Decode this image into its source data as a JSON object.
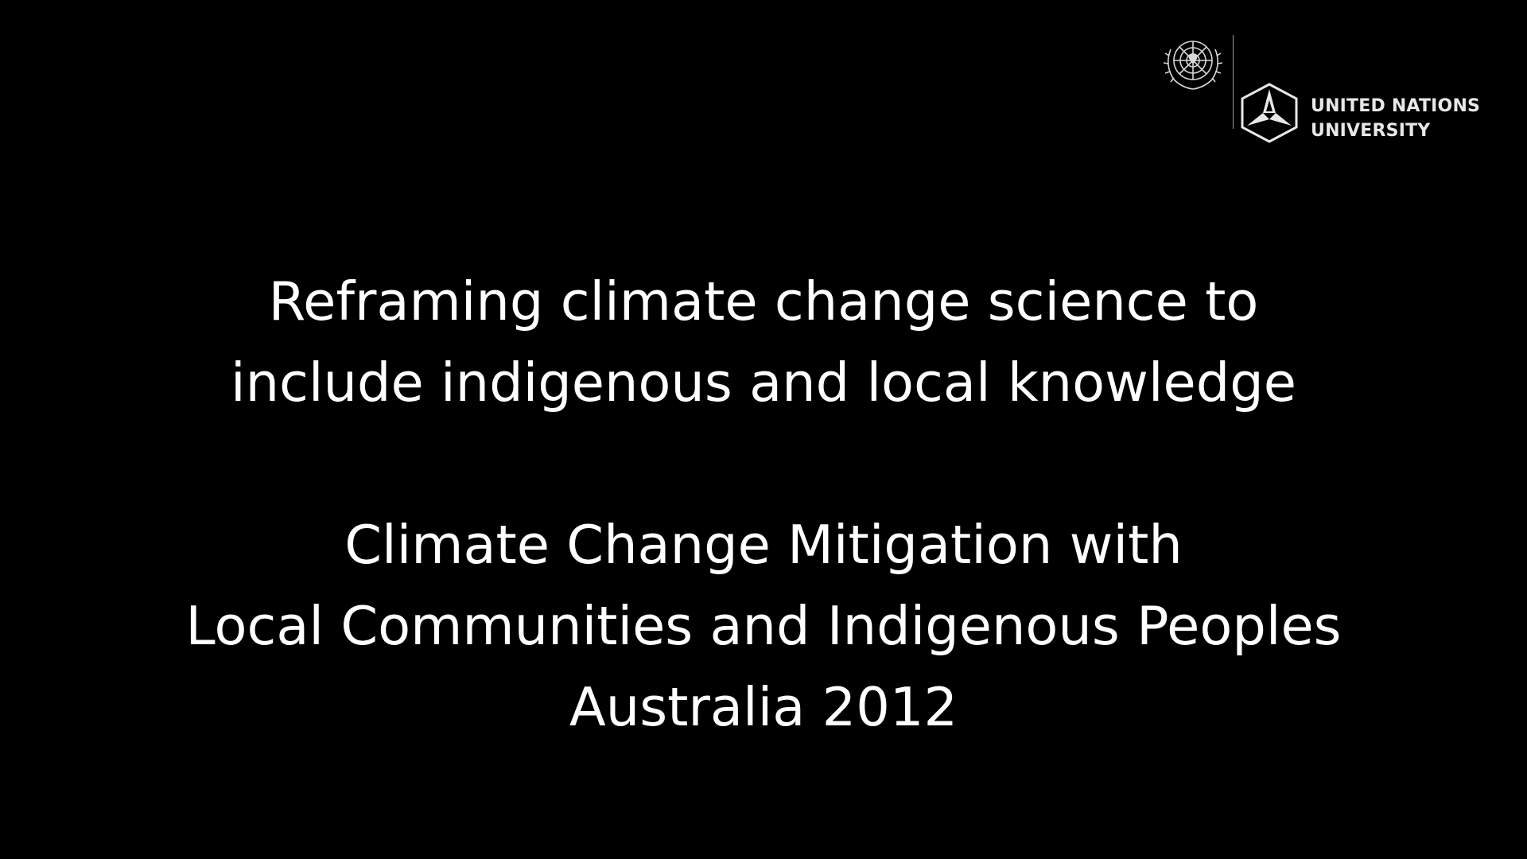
{
  "logo": {
    "emblem_icon": "un-emblem-icon",
    "mark_icon": "unu-triangle-mark-icon",
    "line1": "UNITED NATIONS",
    "line2": "UNIVERSITY",
    "color": "#e8e8e8"
  },
  "title": {
    "line1": "Reframing climate change science to",
    "line2": "include indigenous and local knowledge"
  },
  "subtitle": {
    "line1": "Climate Change Mitigation with",
    "line2": "Local Communities and Indigenous Peoples",
    "line3": "Australia 2012"
  },
  "colors": {
    "background": "#000000",
    "text": "#ffffff"
  }
}
